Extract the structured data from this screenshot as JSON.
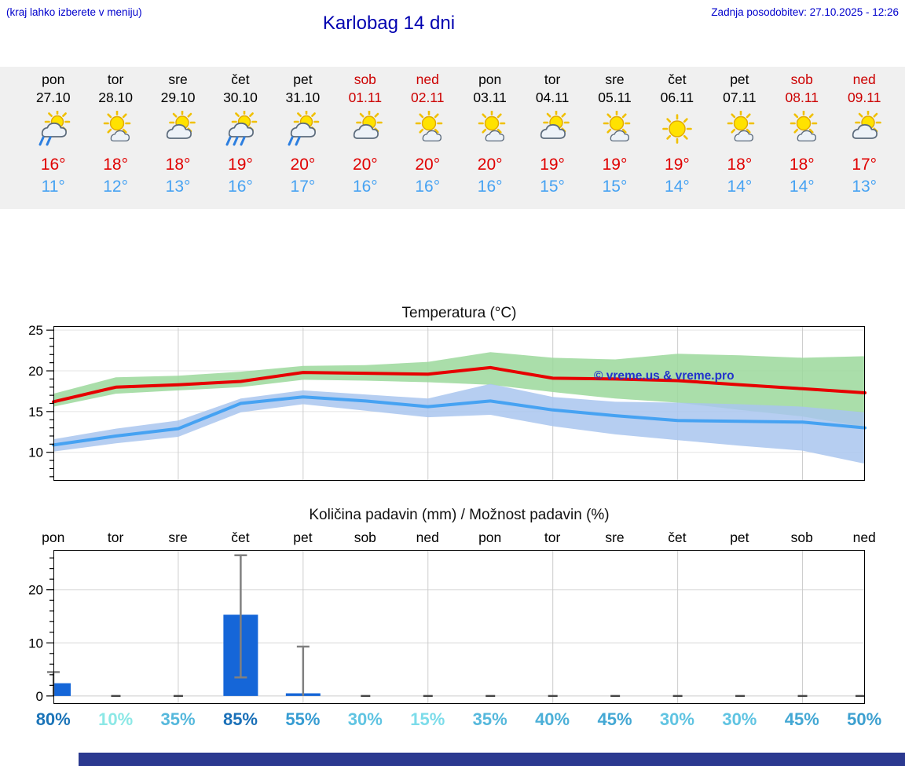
{
  "header": {
    "note": "(kraj lahko izberete v meniju)",
    "title": "Karlobag 14 dni",
    "updated": "Zadnja posodobitev: 27.10.2025 - 12:26"
  },
  "watermark": "© vreme.us & vreme.pro",
  "colors": {
    "max_temp_text": "#e00000",
    "min_temp_text": "#46a2f2",
    "weekend": "#cc0000",
    "weekday": "#000000",
    "strip_bg": "#f0f0f0",
    "footer_bar": "#2b3990"
  },
  "days": [
    {
      "name": "pon",
      "date": "27.10",
      "weekend": false,
      "icon": "sun-cloud-rain",
      "tmax": "16°",
      "tmin": "11°",
      "prob": "80%",
      "prob_color": "#1b74b8"
    },
    {
      "name": "tor",
      "date": "28.10",
      "weekend": false,
      "icon": "sun-small-cloud",
      "tmax": "18°",
      "tmin": "12°",
      "prob": "10%",
      "prob_color": "#8ce8e6"
    },
    {
      "name": "sre",
      "date": "29.10",
      "weekend": false,
      "icon": "sun-cloud",
      "tmax": "18°",
      "tmin": "13°",
      "prob": "35%",
      "prob_color": "#55b8dc"
    },
    {
      "name": "čet",
      "date": "30.10",
      "weekend": false,
      "icon": "sun-cloud-heavy-rain",
      "tmax": "19°",
      "tmin": "16°",
      "prob": "85%",
      "prob_color": "#1a70b8"
    },
    {
      "name": "pet",
      "date": "31.10",
      "weekend": false,
      "icon": "sun-cloud-rain",
      "tmax": "20°",
      "tmin": "17°",
      "prob": "55%",
      "prob_color": "#369cd2"
    },
    {
      "name": "sob",
      "date": "01.11",
      "weekend": true,
      "icon": "sun-cloud",
      "tmax": "20°",
      "tmin": "16°",
      "prob": "30%",
      "prob_color": "#60c4e2"
    },
    {
      "name": "ned",
      "date": "02.11",
      "weekend": true,
      "icon": "sun-small-cloud",
      "tmax": "20°",
      "tmin": "16°",
      "prob": "15%",
      "prob_color": "#7cdcea"
    },
    {
      "name": "pon",
      "date": "03.11",
      "weekend": false,
      "icon": "sun-small-cloud",
      "tmax": "20°",
      "tmin": "16°",
      "prob": "35%",
      "prob_color": "#55b8dc"
    },
    {
      "name": "tor",
      "date": "04.11",
      "weekend": false,
      "icon": "sun-cloud",
      "tmax": "19°",
      "tmin": "15°",
      "prob": "40%",
      "prob_color": "#4cb0d8"
    },
    {
      "name": "sre",
      "date": "05.11",
      "weekend": false,
      "icon": "sun-small-cloud",
      "tmax": "19°",
      "tmin": "15°",
      "prob": "45%",
      "prob_color": "#44a8d4"
    },
    {
      "name": "čet",
      "date": "06.11",
      "weekend": false,
      "icon": "sun",
      "tmax": "19°",
      "tmin": "14°",
      "prob": "30%",
      "prob_color": "#60c4e2"
    },
    {
      "name": "pet",
      "date": "07.11",
      "weekend": false,
      "icon": "sun-small-cloud",
      "tmax": "18°",
      "tmin": "14°",
      "prob": "30%",
      "prob_color": "#60c4e2"
    },
    {
      "name": "sob",
      "date": "08.11",
      "weekend": true,
      "icon": "sun-small-cloud",
      "tmax": "18°",
      "tmin": "14°",
      "prob": "45%",
      "prob_color": "#44a8d4"
    },
    {
      "name": "ned",
      "date": "09.11",
      "weekend": true,
      "icon": "sun-cloud",
      "tmax": "17°",
      "tmin": "13°",
      "prob": "50%",
      "prob_color": "#3da0d0"
    }
  ],
  "chart_data": [
    {
      "type": "line",
      "title": "Temperatura (°C)",
      "x_categories": [
        "pon 27.10",
        "tor 28.10",
        "sre 29.10",
        "čet 30.10",
        "pet 31.10",
        "sob 01.11",
        "ned 02.11",
        "pon 03.11",
        "tor 04.11",
        "sre 05.11",
        "čet 06.11",
        "pet 07.11",
        "sob 08.11",
        "ned 09.11"
      ],
      "ylim": [
        6.5,
        25.5
      ],
      "yticks": [
        10,
        15,
        20,
        25
      ],
      "grid": "vertical lines every 2 days, light horizontal lines at yticks",
      "series": [
        {
          "name": "max-temp",
          "color": "#e60000",
          "values": [
            16.2,
            18.0,
            18.3,
            18.7,
            19.8,
            19.7,
            19.6,
            20.4,
            19.1,
            19.0,
            18.8,
            18.3,
            17.8,
            17.3
          ],
          "band_high": [
            17.2,
            19.2,
            19.4,
            19.9,
            20.6,
            20.7,
            21.1,
            22.3,
            21.6,
            21.4,
            22.1,
            21.9,
            21.6,
            21.8
          ],
          "band_low": [
            15.6,
            17.2,
            17.6,
            18.0,
            18.9,
            18.8,
            18.6,
            18.3,
            17.4,
            16.6,
            16.1,
            15.2,
            14.4,
            13.1
          ],
          "band_color": "#9bd89b"
        },
        {
          "name": "min-temp",
          "color": "#46a2f2",
          "values": [
            10.9,
            12.0,
            12.9,
            16.0,
            16.8,
            16.3,
            15.6,
            16.3,
            15.2,
            14.5,
            13.9,
            13.8,
            13.7,
            13.0
          ],
          "band_high": [
            11.6,
            12.9,
            13.9,
            16.6,
            17.6,
            17.1,
            16.6,
            18.4,
            16.8,
            16.2,
            16.1,
            15.9,
            15.6,
            14.9
          ],
          "band_low": [
            10.1,
            11.1,
            11.9,
            14.9,
            15.9,
            15.1,
            14.3,
            14.6,
            13.2,
            12.2,
            11.5,
            10.8,
            10.2,
            8.6
          ],
          "band_color": "#a9c6ef"
        }
      ]
    },
    {
      "type": "bar",
      "title": "Količina padavin (mm) / Možnost padavin (%)",
      "categories": [
        "pon",
        "tor",
        "sre",
        "čet",
        "pet",
        "sob",
        "ned",
        "pon",
        "tor",
        "sre",
        "čet",
        "pet",
        "sob",
        "ned"
      ],
      "values": [
        2.4,
        0,
        0,
        15.3,
        0.5,
        0,
        0,
        0,
        0,
        0,
        0,
        0,
        0,
        0
      ],
      "whisker_low": [
        0,
        0,
        0,
        3.5,
        0,
        0,
        0,
        0,
        0,
        0,
        0,
        0,
        0,
        0
      ],
      "whisker_high": [
        4.5,
        0,
        0,
        26.5,
        9.3,
        0,
        0,
        0,
        0,
        0,
        0,
        0,
        0,
        0
      ],
      "probabilities_pct": [
        80,
        10,
        35,
        85,
        55,
        30,
        15,
        35,
        40,
        45,
        30,
        30,
        45,
        50
      ],
      "bar_color": "#1566d8",
      "ylim": [
        -1.5,
        27.5
      ],
      "yticks": [
        0,
        10,
        20
      ]
    }
  ]
}
